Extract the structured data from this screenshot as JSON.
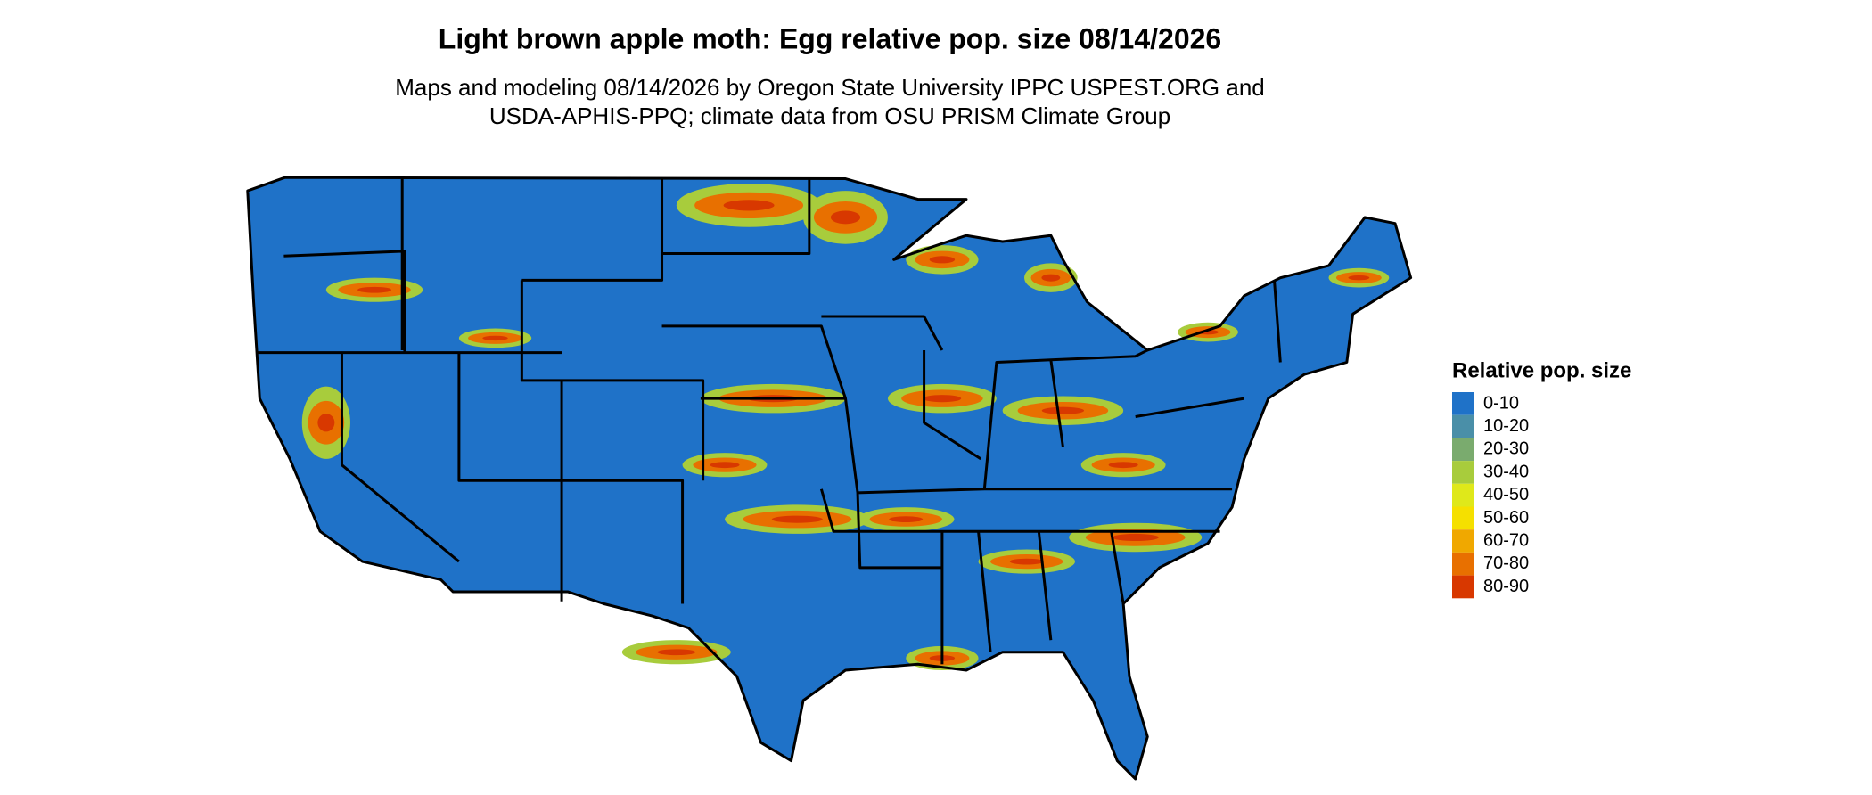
{
  "map": {
    "title": "Light brown apple moth: Egg relative pop. size 08/14/2026",
    "subtitle_lines": [
      "Maps and modeling 08/14/2026 by Oregon State University IPPC USPEST.ORG and",
      "USDA-APHIS-PPQ; climate data from OSU PRISM Climate Group"
    ],
    "legend": {
      "title": "Relative pop. size",
      "items": [
        {
          "label": "0-10",
          "color": "#1f72c8"
        },
        {
          "label": "10-20",
          "color": "#4a8fa8"
        },
        {
          "label": "20-30",
          "color": "#7aab6e"
        },
        {
          "label": "30-40",
          "color": "#a8cc3c"
        },
        {
          "label": "40-50",
          "color": "#dfe81a"
        },
        {
          "label": "50-60",
          "color": "#f5e000"
        },
        {
          "label": "60-70",
          "color": "#f0a800"
        },
        {
          "label": "70-80",
          "color": "#e87000"
        },
        {
          "label": "80-90",
          "color": "#d83800"
        }
      ]
    }
  }
}
